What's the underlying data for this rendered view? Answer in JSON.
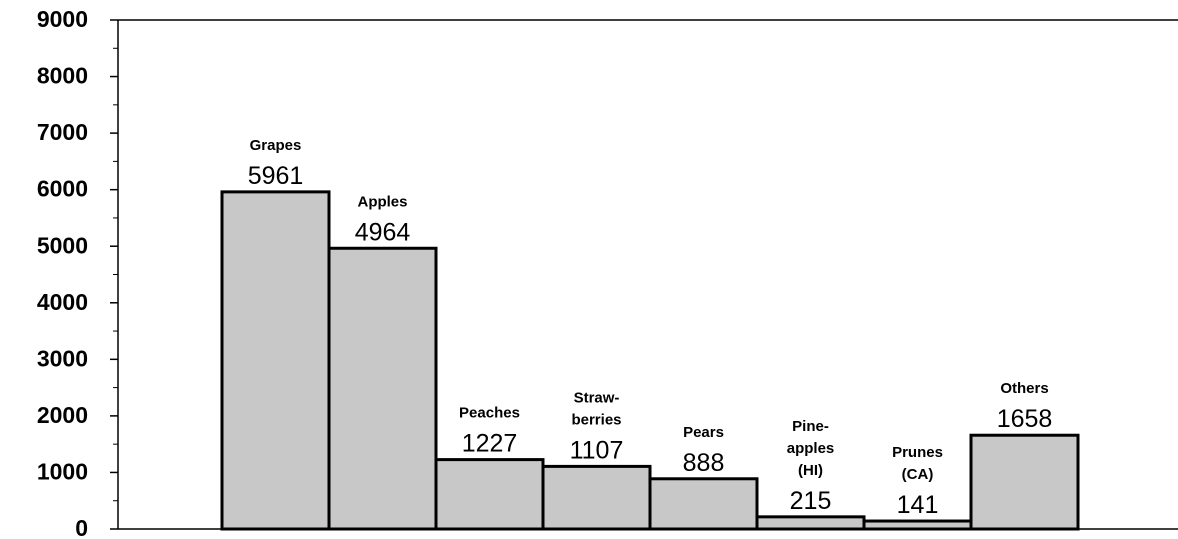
{
  "chart_data": {
    "type": "bar",
    "categories": [
      "Grapes",
      "Apples",
      "Peaches",
      "Straw-\nberries",
      "Pears",
      "Pine-\napples\n(HI)",
      "Prunes\n(CA)",
      "Others"
    ],
    "values": [
      5961,
      4964,
      1227,
      1107,
      888,
      215,
      141,
      1658
    ],
    "color": "#c8c8c8",
    "ylim": [
      0,
      9000
    ],
    "yticks": [
      0,
      1000,
      2000,
      3000,
      4000,
      5000,
      6000,
      7000,
      8000,
      9000
    ],
    "minor_yticks": [
      500,
      1500,
      2500,
      3500,
      4500,
      5500,
      6500,
      7500,
      8500
    ]
  }
}
